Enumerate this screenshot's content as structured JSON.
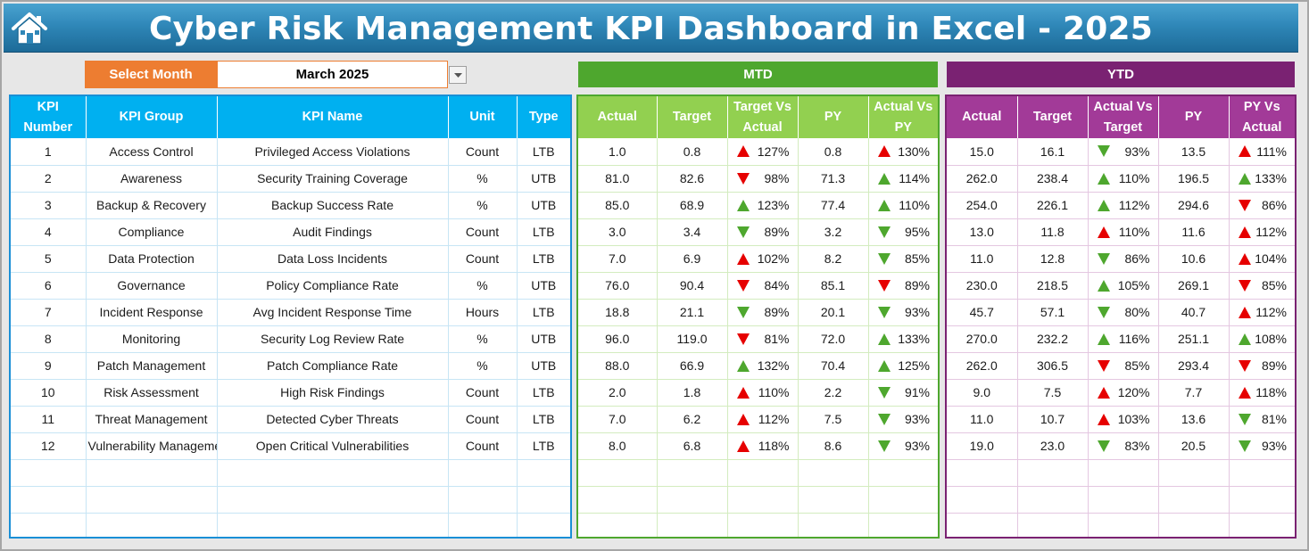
{
  "header": {
    "title": "Cyber Risk Management KPI Dashboard in Excel - 2025",
    "home_icon": "home-icon"
  },
  "month_selector": {
    "label": "Select Month",
    "value": "March 2025"
  },
  "sections": {
    "mtd": "MTD",
    "ytd": "YTD"
  },
  "colors": {
    "title_bar": "#2f87b8",
    "select_label": "#ed7d31",
    "kpi_header": "#00b0f0",
    "mtd_band": "#4ea72e",
    "mtd_header": "#92d050",
    "ytd_band": "#7a2272",
    "ytd_header": "#a23a98",
    "up_good": "#4ea72e",
    "down_bad": "#e60000"
  },
  "kpi_table": {
    "columns": [
      {
        "line1": "KPI",
        "line2": "Number"
      },
      {
        "line1": "KPI Group",
        "line2": ""
      },
      {
        "line1": "KPI Name",
        "line2": ""
      },
      {
        "line1": "Unit",
        "line2": ""
      },
      {
        "line1": "Type",
        "line2": ""
      }
    ],
    "rows": [
      [
        "1",
        "Access Control",
        "Privileged Access Violations",
        "Count",
        "LTB"
      ],
      [
        "2",
        "Awareness",
        "Security Training Coverage",
        "%",
        "UTB"
      ],
      [
        "3",
        "Backup & Recovery",
        "Backup Success Rate",
        "%",
        "UTB"
      ],
      [
        "4",
        "Compliance",
        "Audit Findings",
        "Count",
        "LTB"
      ],
      [
        "5",
        "Data Protection",
        "Data Loss Incidents",
        "Count",
        "LTB"
      ],
      [
        "6",
        "Governance",
        "Policy Compliance Rate",
        "%",
        "UTB"
      ],
      [
        "7",
        "Incident Response",
        "Avg Incident Response Time",
        "Hours",
        "LTB"
      ],
      [
        "8",
        "Monitoring",
        "Security Log Review Rate",
        "%",
        "UTB"
      ],
      [
        "9",
        "Patch Management",
        "Patch Compliance Rate",
        "%",
        "UTB"
      ],
      [
        "10",
        "Risk Assessment",
        "High Risk Findings",
        "Count",
        "LTB"
      ],
      [
        "11",
        "Threat Management",
        "Detected Cyber Threats",
        "Count",
        "LTB"
      ],
      [
        "12",
        "Vulnerability Management",
        "Open Critical Vulnerabilities",
        "Count",
        "LTB"
      ]
    ],
    "empty_rows": 3
  },
  "mtd_table": {
    "columns": [
      {
        "line1": "Actual",
        "line2": ""
      },
      {
        "line1": "Target",
        "line2": ""
      },
      {
        "line1": "Target Vs",
        "line2": "Actual"
      },
      {
        "line1": "PY",
        "line2": ""
      },
      {
        "line1": "Actual Vs",
        "line2": "PY"
      }
    ],
    "rows": [
      {
        "actual": "1.0",
        "target": "0.8",
        "tva": "127%",
        "tva_icon": "up-red",
        "py": "0.8",
        "avp": "130%",
        "avp_icon": "up-red"
      },
      {
        "actual": "81.0",
        "target": "82.6",
        "tva": "98%",
        "tva_icon": "down-red",
        "py": "71.3",
        "avp": "114%",
        "avp_icon": "up-green"
      },
      {
        "actual": "85.0",
        "target": "68.9",
        "tva": "123%",
        "tva_icon": "up-green",
        "py": "77.4",
        "avp": "110%",
        "avp_icon": "up-green"
      },
      {
        "actual": "3.0",
        "target": "3.4",
        "tva": "89%",
        "tva_icon": "down-green",
        "py": "3.2",
        "avp": "95%",
        "avp_icon": "down-green"
      },
      {
        "actual": "7.0",
        "target": "6.9",
        "tva": "102%",
        "tva_icon": "up-red",
        "py": "8.2",
        "avp": "85%",
        "avp_icon": "down-green"
      },
      {
        "actual": "76.0",
        "target": "90.4",
        "tva": "84%",
        "tva_icon": "down-red",
        "py": "85.1",
        "avp": "89%",
        "avp_icon": "down-red"
      },
      {
        "actual": "18.8",
        "target": "21.1",
        "tva": "89%",
        "tva_icon": "down-green",
        "py": "20.1",
        "avp": "93%",
        "avp_icon": "down-green"
      },
      {
        "actual": "96.0",
        "target": "119.0",
        "tva": "81%",
        "tva_icon": "down-red",
        "py": "72.0",
        "avp": "133%",
        "avp_icon": "up-green"
      },
      {
        "actual": "88.0",
        "target": "66.9",
        "tva": "132%",
        "tva_icon": "up-green",
        "py": "70.4",
        "avp": "125%",
        "avp_icon": "up-green"
      },
      {
        "actual": "2.0",
        "target": "1.8",
        "tva": "110%",
        "tva_icon": "up-red",
        "py": "2.2",
        "avp": "91%",
        "avp_icon": "down-green"
      },
      {
        "actual": "7.0",
        "target": "6.2",
        "tva": "112%",
        "tva_icon": "up-red",
        "py": "7.5",
        "avp": "93%",
        "avp_icon": "down-green"
      },
      {
        "actual": "8.0",
        "target": "6.8",
        "tva": "118%",
        "tva_icon": "up-red",
        "py": "8.6",
        "avp": "93%",
        "avp_icon": "down-green"
      }
    ]
  },
  "ytd_table": {
    "columns": [
      {
        "line1": "Actual",
        "line2": ""
      },
      {
        "line1": "Target",
        "line2": ""
      },
      {
        "line1": "Actual Vs",
        "line2": "Target"
      },
      {
        "line1": "PY",
        "line2": ""
      },
      {
        "line1": "PY Vs",
        "line2": "Actual"
      }
    ],
    "rows": [
      {
        "actual": "15.0",
        "target": "16.1",
        "tva": "93%",
        "tva_icon": "down-green",
        "py": "13.5",
        "avp": "111%",
        "avp_icon": "up-red"
      },
      {
        "actual": "262.0",
        "target": "238.4",
        "tva": "110%",
        "tva_icon": "up-green",
        "py": "196.5",
        "avp": "133%",
        "avp_icon": "up-green"
      },
      {
        "actual": "254.0",
        "target": "226.1",
        "tva": "112%",
        "tva_icon": "up-green",
        "py": "294.6",
        "avp": "86%",
        "avp_icon": "down-red"
      },
      {
        "actual": "13.0",
        "target": "11.8",
        "tva": "110%",
        "tva_icon": "up-red",
        "py": "11.6",
        "avp": "112%",
        "avp_icon": "up-red"
      },
      {
        "actual": "11.0",
        "target": "12.8",
        "tva": "86%",
        "tva_icon": "down-green",
        "py": "10.6",
        "avp": "104%",
        "avp_icon": "up-red"
      },
      {
        "actual": "230.0",
        "target": "218.5",
        "tva": "105%",
        "tva_icon": "up-green",
        "py": "269.1",
        "avp": "85%",
        "avp_icon": "down-red"
      },
      {
        "actual": "45.7",
        "target": "57.1",
        "tva": "80%",
        "tva_icon": "down-green",
        "py": "40.7",
        "avp": "112%",
        "avp_icon": "up-red"
      },
      {
        "actual": "270.0",
        "target": "232.2",
        "tva": "116%",
        "tva_icon": "up-green",
        "py": "251.1",
        "avp": "108%",
        "avp_icon": "up-green"
      },
      {
        "actual": "262.0",
        "target": "306.5",
        "tva": "85%",
        "tva_icon": "down-red",
        "py": "293.4",
        "avp": "89%",
        "avp_icon": "down-red"
      },
      {
        "actual": "9.0",
        "target": "7.5",
        "tva": "120%",
        "tva_icon": "up-red",
        "py": "7.7",
        "avp": "118%",
        "avp_icon": "up-red"
      },
      {
        "actual": "11.0",
        "target": "10.7",
        "tva": "103%",
        "tva_icon": "up-red",
        "py": "13.6",
        "avp": "81%",
        "avp_icon": "down-green"
      },
      {
        "actual": "19.0",
        "target": "23.0",
        "tva": "83%",
        "tva_icon": "down-green",
        "py": "20.5",
        "avp": "93%",
        "avp_icon": "down-green"
      }
    ]
  }
}
